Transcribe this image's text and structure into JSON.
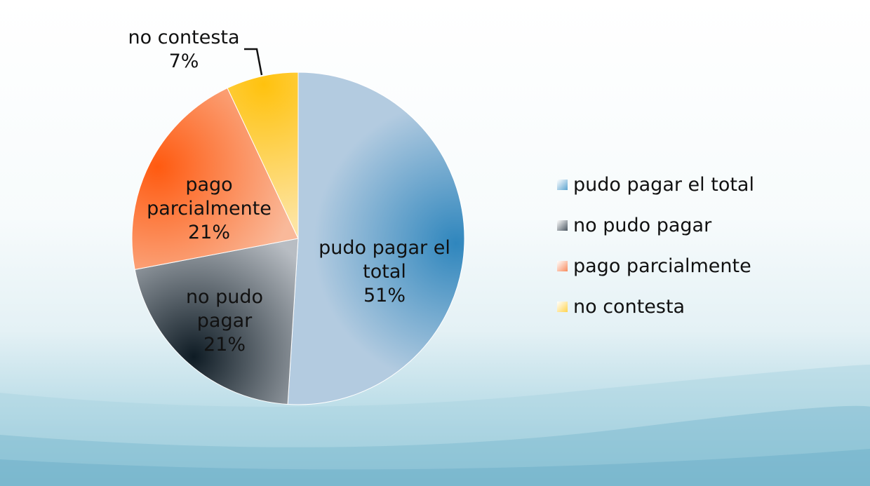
{
  "chart_data": {
    "type": "pie",
    "categories": [
      "pudo pagar el total",
      "no pudo pagar",
      "pago parcialmente",
      "no contesta"
    ],
    "values": [
      51,
      21,
      21,
      7
    ],
    "value_labels": [
      "51%",
      "21%",
      "21%",
      "7%"
    ],
    "slice_labels": [
      [
        "pudo pagar el",
        "total",
        "51%"
      ],
      [
        "no pudo",
        "pagar",
        "21%"
      ],
      [
        "pago",
        "parcialmente",
        "21%"
      ],
      [
        "no contesta",
        "7%"
      ]
    ],
    "colors": [
      "#b3cbe0",
      "#b8bdc3",
      "#f9b99a",
      "#fde4a1"
    ],
    "accent_colors": [
      "#2f86bd",
      "#0e1b24",
      "#ff5a10",
      "#ffc20e"
    ],
    "legend_position": "right",
    "start_angle": "12 o'clock",
    "direction": "clockwise"
  },
  "legend": {
    "items": [
      {
        "label": "pudo pagar el total",
        "color": "#5aa3cf"
      },
      {
        "label": "no pudo pagar",
        "color": "#4b5660"
      },
      {
        "label": "pago parcialmente",
        "color": "#f88a5c"
      },
      {
        "label": "no contesta",
        "color": "#ffd34d"
      }
    ]
  }
}
